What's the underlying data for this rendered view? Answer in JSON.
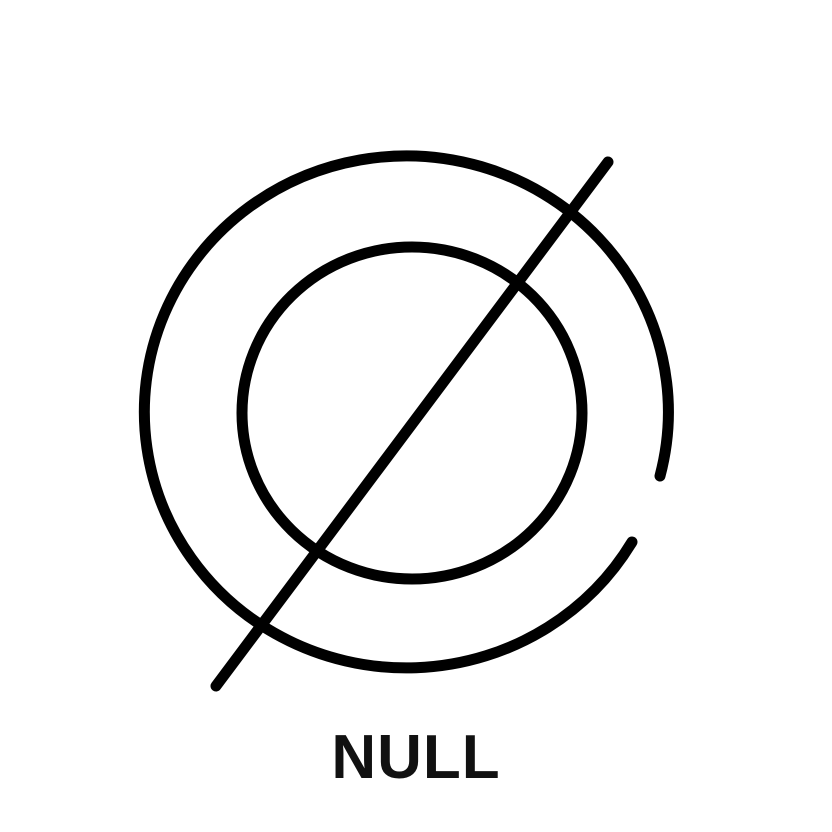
{
  "logo": {
    "icon": "null-symbol-icon",
    "wordmark": "NULL",
    "stroke_color": "#000000",
    "text_color": "#111111",
    "background_color": "#ffffff"
  }
}
